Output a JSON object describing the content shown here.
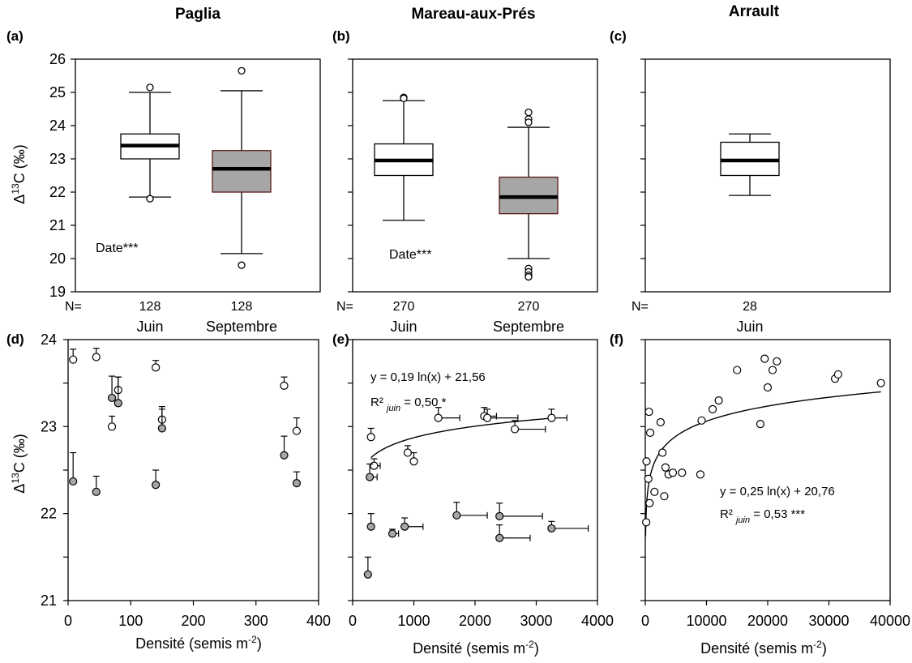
{
  "figure": {
    "sites": [
      "Paglia",
      "Mareau-aux-Prés",
      "Arrault"
    ],
    "panel_letters": [
      "(a)",
      "(b)",
      "(c)",
      "(d)",
      "(e)",
      "(f)"
    ],
    "n_label": "N=",
    "ylabel_main": "Δ",
    "ylabel_sup": "13",
    "ylabel_rest": "C (‰)",
    "xlabel_main": "Densité (semis m",
    "xlabel_sup": "-2",
    "xlabel_end": ")"
  },
  "colors": {
    "juin": "#ffffff",
    "septembre": "#a6a6a6",
    "line": "#000000"
  },
  "chart_data": [
    {
      "type": "box",
      "panel": "(a)",
      "title": "Paglia",
      "ylabel": "Δ13C (‰)",
      "ylim": [
        19,
        26
      ],
      "yticks": [
        "19",
        "20",
        "21",
        "22",
        "23",
        "24",
        "25",
        "26"
      ],
      "annotation": "Date***",
      "boxes": [
        {
          "category": "Juin",
          "n": "128",
          "whisker_low": 21.85,
          "q1": 23.0,
          "median": 23.4,
          "q3": 23.75,
          "whisker_high": 25.0,
          "outliers": [
            25.15,
            21.8
          ]
        },
        {
          "category": "Septembre",
          "n": "128",
          "whisker_low": 20.15,
          "q1": 22.0,
          "median": 22.7,
          "q3": 23.25,
          "whisker_high": 25.05,
          "outliers": [
            25.65,
            19.8
          ]
        }
      ]
    },
    {
      "type": "box",
      "panel": "(b)",
      "title": "Mareau-aux-Prés",
      "ylim": [
        19,
        26
      ],
      "annotation": "Date***",
      "boxes": [
        {
          "category": "Juin",
          "n": "270",
          "whisker_low": 21.15,
          "q1": 22.5,
          "median": 22.95,
          "q3": 23.45,
          "whisker_high": 24.75,
          "outliers": [
            24.85,
            24.82
          ]
        },
        {
          "category": "Septembre",
          "n": "270",
          "whisker_low": 20.0,
          "q1": 21.35,
          "median": 21.85,
          "q3": 22.45,
          "whisker_high": 23.95,
          "outliers": [
            24.4,
            24.2,
            24.1,
            19.7,
            19.6,
            19.5,
            19.45
          ]
        }
      ]
    },
    {
      "type": "box",
      "panel": "(c)",
      "title": "Arrault",
      "ylim": [
        19,
        26
      ],
      "boxes": [
        {
          "category": "Juin",
          "n": "28",
          "whisker_low": 21.9,
          "q1": 22.5,
          "median": 22.95,
          "q3": 23.5,
          "whisker_high": 23.75,
          "outliers": []
        }
      ]
    },
    {
      "type": "scatter",
      "panel": "(d)",
      "xlabel": "Densité (semis m-2)",
      "ylabel": "Δ13C (‰)",
      "xlim": [
        0,
        400
      ],
      "ylim": [
        21,
        24
      ],
      "xticks": [
        "0",
        "100",
        "200",
        "300",
        "400"
      ],
      "yticks": [
        "21",
        "22",
        "23",
        "24"
      ],
      "series": [
        {
          "key": "juin",
          "points": [
            {
              "x": 8,
              "y": 23.77,
              "err": 0.12
            },
            {
              "x": 45,
              "y": 23.8,
              "err": 0.1
            },
            {
              "x": 70,
              "y": 23.0,
              "err": 0.12
            },
            {
              "x": 80,
              "y": 23.42,
              "err": 0.15
            },
            {
              "x": 140,
              "y": 23.68,
              "err": 0.08
            },
            {
              "x": 150,
              "y": 23.08,
              "err": 0.15
            },
            {
              "x": 345,
              "y": 23.47,
              "err": 0.1
            },
            {
              "x": 365,
              "y": 22.95,
              "err": 0.15
            }
          ]
        },
        {
          "key": "septembre",
          "points": [
            {
              "x": 8,
              "y": 22.37,
              "err": 0.33
            },
            {
              "x": 45,
              "y": 22.25,
              "err": 0.18
            },
            {
              "x": 70,
              "y": 23.33,
              "err": 0.25
            },
            {
              "x": 80,
              "y": 23.27,
              "err": 0.3
            },
            {
              "x": 140,
              "y": 22.33,
              "err": 0.17
            },
            {
              "x": 150,
              "y": 22.98,
              "err": 0.22
            },
            {
              "x": 345,
              "y": 22.67,
              "err": 0.22
            },
            {
              "x": 365,
              "y": 22.35,
              "err": 0.13
            }
          ]
        }
      ]
    },
    {
      "type": "scatter",
      "panel": "(e)",
      "xlabel": "Densité (semis m-2)",
      "xlim": [
        0,
        4000
      ],
      "ylim": [
        21,
        24
      ],
      "xticks": [
        "0",
        "1000",
        "2000",
        "3000",
        "4000"
      ],
      "equation": "y = 0,19 ln(x) + 21,56",
      "r2_main": "R² ",
      "r2_sub": "juin",
      "r2_value": " = 0,50 *",
      "fit": {
        "a": 0.19,
        "b": 21.56,
        "x_from": 300,
        "x_to": 3300
      },
      "series": [
        {
          "key": "juin",
          "points": [
            {
              "x": 300,
              "y": 22.88,
              "err": 0.1,
              "xerr": 0
            },
            {
              "x": 350,
              "y": 22.55,
              "err": 0.08,
              "xerr": 100
            },
            {
              "x": 900,
              "y": 22.7,
              "err": 0.08,
              "xerr": 0
            },
            {
              "x": 1000,
              "y": 22.6,
              "err": 0.1,
              "xerr": 0
            },
            {
              "x": 1400,
              "y": 23.1,
              "err": 0.12,
              "xerr": 350
            },
            {
              "x": 2150,
              "y": 23.12,
              "err": 0.1,
              "xerr": 200
            },
            {
              "x": 2200,
              "y": 23.1,
              "err": 0.1,
              "xerr": 500
            },
            {
              "x": 2650,
              "y": 22.97,
              "err": 0.1,
              "xerr": 500
            },
            {
              "x": 3250,
              "y": 23.1,
              "err": 0.1,
              "xerr": 250
            }
          ]
        },
        {
          "key": "septembre",
          "points": [
            {
              "x": 280,
              "y": 22.42,
              "err": 0.15,
              "xerr": 120
            },
            {
              "x": 250,
              "y": 21.3,
              "err": 0.2,
              "xerr": 0
            },
            {
              "x": 300,
              "y": 21.85,
              "err": 0.15,
              "xerr": 0
            },
            {
              "x": 650,
              "y": 21.77,
              "err": 0.05,
              "xerr": 100
            },
            {
              "x": 850,
              "y": 21.85,
              "err": 0.1,
              "xerr": 300
            },
            {
              "x": 1700,
              "y": 21.98,
              "err": 0.15,
              "xerr": 500
            },
            {
              "x": 2400,
              "y": 21.97,
              "err": 0.15,
              "xerr": 700
            },
            {
              "x": 2400,
              "y": 21.72,
              "err": 0.15,
              "xerr": 500
            },
            {
              "x": 3250,
              "y": 21.83,
              "err": 0.08,
              "xerr": 600
            }
          ]
        }
      ]
    },
    {
      "type": "scatter",
      "panel": "(f)",
      "xlabel": "Densité (semis m-2)",
      "xlim": [
        0,
        40000
      ],
      "ylim": [
        21,
        24
      ],
      "xticks": [
        "0",
        "10000",
        "20000",
        "30000",
        "40000"
      ],
      "equation": "y = 0,25 ln(x) + 20,76",
      "r2_main": "R² ",
      "r2_sub": "juin",
      "r2_value": " = 0,53 ***",
      "fit": {
        "a": 0.25,
        "b": 20.76,
        "x_from": 50,
        "x_to": 38500
      },
      "series": [
        {
          "key": "juin",
          "points": [
            {
              "x": 150,
              "y": 21.9
            },
            {
              "x": 200,
              "y": 22.6
            },
            {
              "x": 500,
              "y": 22.4
            },
            {
              "x": 700,
              "y": 22.12
            },
            {
              "x": 600,
              "y": 23.17
            },
            {
              "x": 800,
              "y": 22.93
            },
            {
              "x": 1500,
              "y": 22.25
            },
            {
              "x": 2500,
              "y": 23.05
            },
            {
              "x": 2800,
              "y": 22.7
            },
            {
              "x": 3100,
              "y": 22.2
            },
            {
              "x": 3300,
              "y": 22.53
            },
            {
              "x": 3800,
              "y": 22.45
            },
            {
              "x": 4500,
              "y": 22.47
            },
            {
              "x": 6000,
              "y": 22.47
            },
            {
              "x": 9000,
              "y": 22.45
            },
            {
              "x": 9200,
              "y": 23.07
            },
            {
              "x": 11000,
              "y": 23.2
            },
            {
              "x": 12000,
              "y": 23.3
            },
            {
              "x": 15000,
              "y": 23.65
            },
            {
              "x": 18800,
              "y": 23.03
            },
            {
              "x": 19500,
              "y": 23.78
            },
            {
              "x": 20000,
              "y": 23.45
            },
            {
              "x": 20800,
              "y": 23.65
            },
            {
              "x": 21500,
              "y": 23.75
            },
            {
              "x": 31000,
              "y": 23.55
            },
            {
              "x": 31500,
              "y": 23.6
            },
            {
              "x": 38500,
              "y": 23.5
            }
          ]
        }
      ]
    }
  ]
}
